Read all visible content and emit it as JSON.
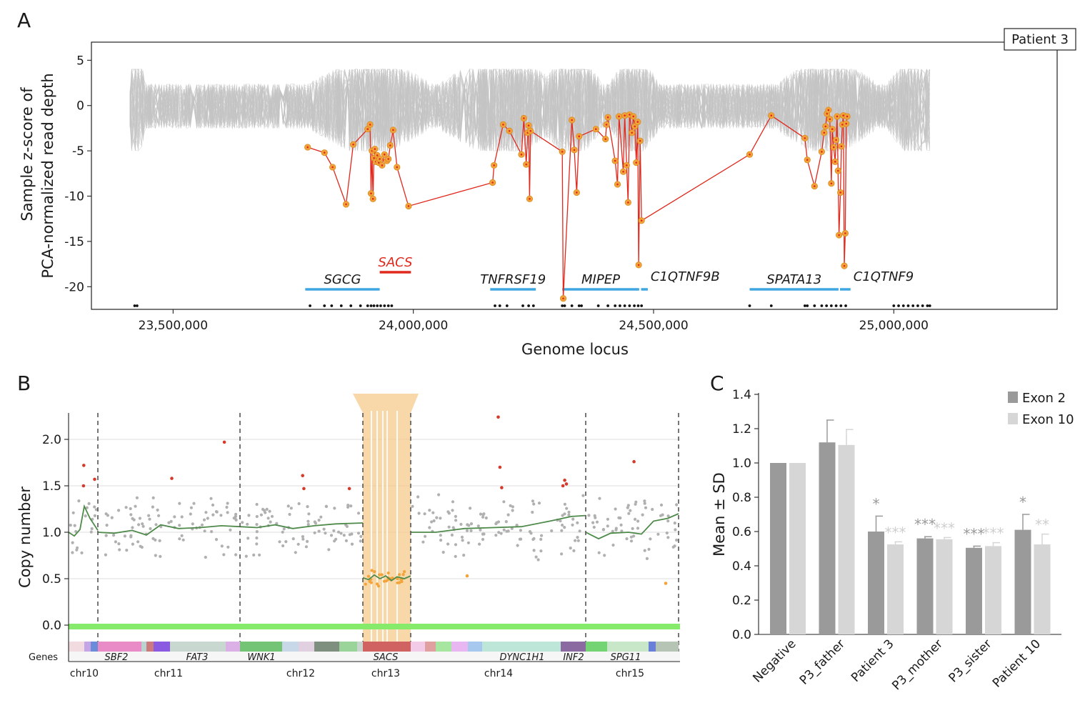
{
  "panel_labels": [
    "A",
    "B",
    "C"
  ],
  "chart_data": [
    {
      "panel": "A",
      "type": "line",
      "title": "",
      "box_label": "Patient 3",
      "xlabel": "Genome locus",
      "ylabel_line1": "Sample z-score of",
      "ylabel_line2": "PCA-normalized read depth",
      "xlim": [
        23330000,
        25340000
      ],
      "ylim": [
        -22.5,
        7
      ],
      "x_ticks": [
        {
          "value": 23500000,
          "label": "23,500,000"
        },
        {
          "value": 24000000,
          "label": "24,000,000"
        },
        {
          "value": 24500000,
          "label": "24,500,000"
        },
        {
          "value": 25000000,
          "label": "25,000,000"
        }
      ],
      "y_ticks": [
        {
          "value": 5,
          "label": "5"
        },
        {
          "value": 0,
          "label": "0"
        },
        {
          "value": -5,
          "label": "-5"
        },
        {
          "value": -10,
          "label": "-10"
        },
        {
          "value": -15,
          "label": "-15"
        },
        {
          "value": -20,
          "label": "-20"
        }
      ],
      "background_band": {
        "x_start": 23410000,
        "x_end": 25080000,
        "z_min": -5,
        "z_max": 4,
        "color": "#c4c4c4"
      },
      "patient_series": {
        "name": "Patient 3",
        "color": "#e0281c",
        "marker_color": "#f2a43a",
        "points": [
          [
            23780000,
            -4.6
          ],
          [
            23815000,
            -5.2
          ],
          [
            23832000,
            -6.8
          ],
          [
            23860000,
            -10.9
          ],
          [
            23875000,
            -4.3
          ],
          [
            23905000,
            -2.6
          ],
          [
            23910000,
            -2.1
          ],
          [
            23912000,
            -9.7
          ],
          [
            23914000,
            -5.0
          ],
          [
            23916000,
            -10.3
          ],
          [
            23918000,
            -5.8
          ],
          [
            23920000,
            -4.8
          ],
          [
            23922000,
            -6.2
          ],
          [
            23925000,
            -5.5
          ],
          [
            23928000,
            -6.3
          ],
          [
            23930000,
            -5.9
          ],
          [
            23935000,
            -6.6
          ],
          [
            23940000,
            -5.4
          ],
          [
            23945000,
            -6.1
          ],
          [
            23948000,
            -5.9
          ],
          [
            23952000,
            -4.4
          ],
          [
            23958000,
            -2.7
          ],
          [
            23966000,
            -6.8
          ],
          [
            23990000,
            -11.1
          ],
          [
            24165000,
            -8.5
          ],
          [
            24168000,
            -6.6
          ],
          [
            24187000,
            -2.1
          ],
          [
            24200000,
            -2.8
          ],
          [
            24225000,
            -5.4
          ],
          [
            24230000,
            -1.4
          ],
          [
            24235000,
            -6.5
          ],
          [
            24238000,
            -3.0
          ],
          [
            24240000,
            -2.2
          ],
          [
            24242000,
            -10.3
          ],
          [
            24244000,
            -2.8
          ],
          [
            24310000,
            -5.1
          ],
          [
            24312000,
            -21.3
          ],
          [
            24330000,
            -1.6
          ],
          [
            24335000,
            -4.9
          ],
          [
            24340000,
            -9.6
          ],
          [
            24345000,
            -3.4
          ],
          [
            24380000,
            -2.6
          ],
          [
            24400000,
            -3.7
          ],
          [
            24402000,
            -2.1
          ],
          [
            24405000,
            -1.3
          ],
          [
            24420000,
            -6.1
          ],
          [
            24425000,
            -8.7
          ],
          [
            24428000,
            -1.2
          ],
          [
            24437000,
            -7.3
          ],
          [
            24440000,
            -1.1
          ],
          [
            24444000,
            -6.6
          ],
          [
            24447000,
            -10.7
          ],
          [
            24450000,
            -1.0
          ],
          [
            24455000,
            -3.0
          ],
          [
            24458000,
            -1.2
          ],
          [
            24461000,
            -2.3
          ],
          [
            24464000,
            -6.3
          ],
          [
            24467000,
            -1.8
          ],
          [
            24469000,
            -17.6
          ],
          [
            24472000,
            -3.9
          ],
          [
            24475000,
            -12.7
          ],
          [
            24700000,
            -5.4
          ],
          [
            24745000,
            -1.1
          ],
          [
            24815000,
            -3.6
          ],
          [
            24820000,
            -6.0
          ],
          [
            24835000,
            -8.9
          ],
          [
            24850000,
            -5.1
          ],
          [
            24855000,
            -3.0
          ],
          [
            24858000,
            -2.3
          ],
          [
            24861000,
            -0.9
          ],
          [
            24864000,
            -0.5
          ],
          [
            24867000,
            -1.5
          ],
          [
            24870000,
            -8.6
          ],
          [
            24872000,
            -2.6
          ],
          [
            24875000,
            -4.6
          ],
          [
            24878000,
            -6.2
          ],
          [
            24880000,
            -3.8
          ],
          [
            24882000,
            -1.2
          ],
          [
            24884000,
            -7.2
          ],
          [
            24886000,
            -14.3
          ],
          [
            24889000,
            -9.6
          ],
          [
            24891000,
            -4.5
          ],
          [
            24893000,
            -2.1
          ],
          [
            24895000,
            -1.1
          ],
          [
            24897000,
            -17.7
          ],
          [
            24899000,
            -14.1
          ],
          [
            24901000,
            -2.0
          ],
          [
            24903000,
            -1.2
          ]
        ]
      },
      "genes": [
        {
          "name": "SGCG",
          "start": 23775000,
          "end": 23930000,
          "color": "#3ea7e2",
          "label_color": "#1a1a1a"
        },
        {
          "name": "SACS",
          "start": 23930000,
          "end": 23995000,
          "color": "#e0281c",
          "label_color": "#e0281c"
        },
        {
          "name": "TNFRSF19",
          "start": 24160000,
          "end": 24255000,
          "color": "#3ea7e2",
          "label_color": "#1a1a1a"
        },
        {
          "name": "MIPEP",
          "start": 24310000,
          "end": 24470000,
          "color": "#3ea7e2",
          "label_color": "#1a1a1a"
        },
        {
          "name": "C1QTNF9B",
          "start": 24474000,
          "end": 24488000,
          "color": "#3ea7e2",
          "label_color": "#1a1a1a"
        },
        {
          "name": "SPATA13",
          "start": 24700000,
          "end": 24885000,
          "color": "#3ea7e2",
          "label_color": "#1a1a1a"
        },
        {
          "name": "C1QTNF9",
          "start": 24888000,
          "end": 24910000,
          "color": "#3ea7e2",
          "label_color": "#1a1a1a"
        }
      ],
      "exon_markers_x": [
        23420000,
        23425000,
        23785000,
        23815000,
        23830000,
        23850000,
        23870000,
        23890000,
        23905000,
        23912000,
        23918000,
        23925000,
        23932000,
        23940000,
        23948000,
        23955000,
        24170000,
        24180000,
        24195000,
        24228000,
        24240000,
        24250000,
        24310000,
        24315000,
        24330000,
        24345000,
        24350000,
        24385000,
        24405000,
        24420000,
        24430000,
        24440000,
        24450000,
        24460000,
        24468000,
        24475000,
        24700000,
        24745000,
        24815000,
        24820000,
        24835000,
        24850000,
        24860000,
        24870000,
        24880000,
        24890000,
        24900000,
        25000000,
        25010000,
        25020000,
        25030000,
        25040000,
        25050000,
        25060000,
        25070000,
        25075000
      ]
    },
    {
      "panel": "B",
      "type": "scatter",
      "title": "",
      "xlabel": "",
      "ylabel": "Copy number",
      "ylim": [
        -0.05,
        2.35
      ],
      "y_ticks": [
        {
          "value": 0.0,
          "label": "0.0"
        },
        {
          "value": 0.5,
          "label": "0.5"
        },
        {
          "value": 1.0,
          "label": "1.0"
        },
        {
          "value": 1.5,
          "label": "1.5"
        },
        {
          "value": 2.0,
          "label": "2.0"
        }
      ],
      "highlight_region": {
        "chromosome": "chr13",
        "gene": "SACS",
        "color": "#f6c98c"
      },
      "genes_row_label": "Genes",
      "chromosomes": [
        "chr10",
        "chr11",
        "chr12",
        "chr13",
        "chr14",
        "chr15"
      ],
      "genes": [
        "SBF2",
        "FAT3",
        "WNK1",
        "SACS",
        "DYNC1H1",
        "INF2",
        "SPG11"
      ],
      "trend_color": "#4e8a4a",
      "points_color": "#b0b0b0",
      "outlier_high_color": "#d63a2a",
      "deletion_color": "#f2a43a",
      "baseline_color": "#86ea6a",
      "outliers_high": [
        {
          "chromosome": "chr10",
          "value": 1.72
        },
        {
          "chromosome": "chr10",
          "value": 1.57
        },
        {
          "chromosome": "chr10",
          "value": 1.5
        },
        {
          "chromosome": "chr11",
          "value": 1.58
        },
        {
          "chromosome": "chr11",
          "value": 1.97
        },
        {
          "chromosome": "chr12",
          "value": 1.47
        },
        {
          "chromosome": "chr12",
          "value": 1.47
        },
        {
          "chromosome": "chr12",
          "value": 1.61
        },
        {
          "chromosome": "chr14",
          "value": 1.48
        },
        {
          "chromosome": "chr14",
          "value": 1.52
        },
        {
          "chromosome": "chr14",
          "value": 1.7
        },
        {
          "chromosome": "chr14",
          "value": 1.56
        },
        {
          "chromosome": "chr14",
          "value": 2.24
        },
        {
          "chromosome": "chr14",
          "value": 1.5
        },
        {
          "chromosome": "chr15",
          "value": 1.76
        }
      ],
      "deletion_level": 0.5
    },
    {
      "panel": "C",
      "type": "bar",
      "title": "",
      "xlabel": "",
      "ylabel": "Mean ± SD",
      "ylim": [
        0,
        1.4
      ],
      "y_ticks": [
        "0.0",
        "0.2",
        "0.4",
        "0.6",
        "0.8",
        "1.0",
        "1.2",
        "1.4"
      ],
      "categories": [
        "Negative",
        "P3_father",
        "Patient 3",
        "P3_mother",
        "P3_sister",
        "Patient 10"
      ],
      "series": [
        {
          "name": "Exon 2",
          "color": "#9a9a9a",
          "values": [
            1.0,
            1.12,
            0.6,
            0.56,
            0.505,
            0.61
          ],
          "sd": [
            0.0,
            0.13,
            0.09,
            0.01,
            0.01,
            0.09
          ],
          "significance": [
            "",
            "",
            "*",
            "***",
            "***",
            "*"
          ]
        },
        {
          "name": "Exon 10",
          "color": "#d6d6d6",
          "values": [
            1.0,
            1.105,
            0.525,
            0.555,
            0.515,
            0.525
          ],
          "sd": [
            0.0,
            0.09,
            0.015,
            0.01,
            0.02,
            0.06
          ],
          "significance": [
            "",
            "",
            "***",
            "***",
            "***",
            "**"
          ]
        }
      ],
      "legend_position": "top-right"
    }
  ]
}
